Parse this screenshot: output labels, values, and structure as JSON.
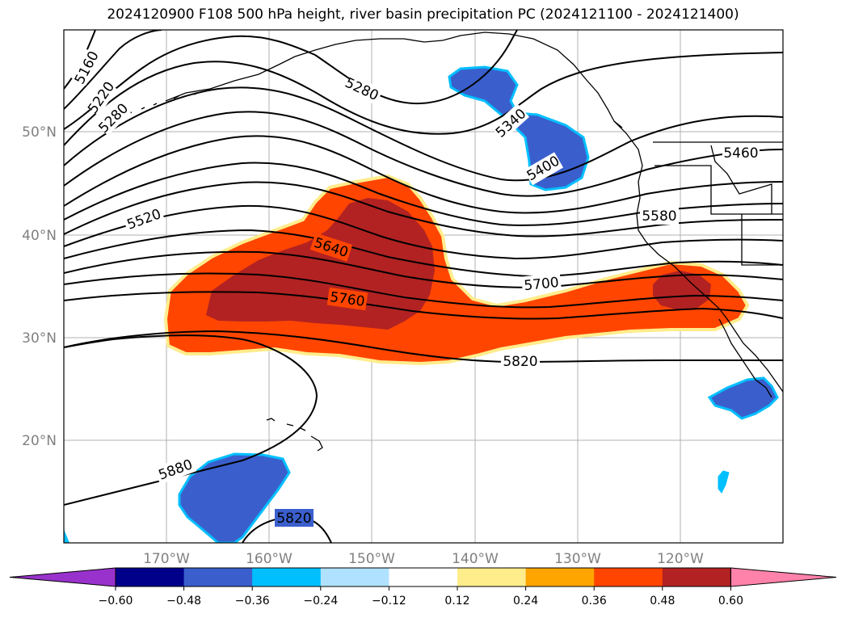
{
  "title": "2024120900 F108 500 hPa height, river basin precipitation PC (2024121100 - 2024121400)",
  "lat_labels": [
    "50°N",
    "40°N",
    "30°N",
    "20°N"
  ],
  "lon_labels": [
    "170°W",
    "160°W",
    "150°W",
    "140°W",
    "130°W",
    "120°W"
  ],
  "contour_labels": [
    "5160",
    "5220",
    "5280",
    "5280",
    "5340",
    "5400",
    "5460",
    "5520",
    "5580",
    "5640",
    "5700",
    "5760",
    "5820",
    "5880",
    "5820"
  ],
  "colorbar": {
    "colors": [
      "#9932CC",
      "#00008B",
      "#3A5FCD",
      "#00BFFF",
      "#B0E2FF",
      "#FFFFFF",
      "#FFEC8B",
      "#FFA500",
      "#FF4500",
      "#B22222",
      "#FF82AB"
    ],
    "tick_labels": [
      "−0.60",
      "−0.48",
      "−0.36",
      "−0.24",
      "−0.12",
      "0.12",
      "0.24",
      "0.36",
      "0.48",
      "0.60"
    ]
  },
  "colors": {
    "positive_outer": "#FF4500",
    "positive_inner": "#B22222",
    "positive_edge": "#FFEC8B",
    "negative_fill": "#3A5FCD",
    "negative_edge": "#00BFFF",
    "grid": "#B0B0B0",
    "contour": "#000000"
  }
}
